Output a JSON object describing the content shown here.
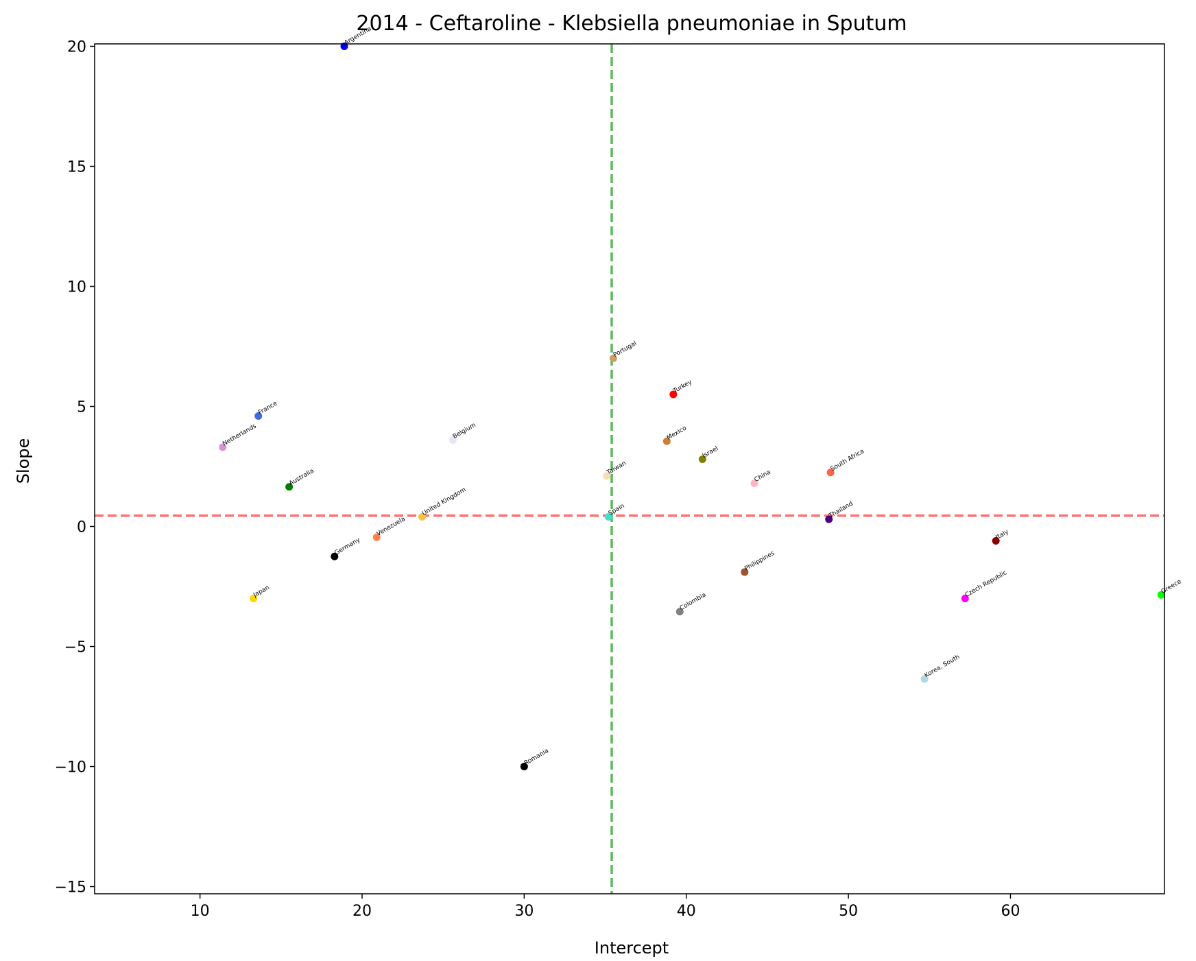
{
  "chart_data": {
    "type": "scatter",
    "title": "2014 - Ceftaroline - Klebsiella pneumoniae in Sputum",
    "xlabel": "Intercept",
    "ylabel": "Slope",
    "xlim": [
      3.5,
      69.5
    ],
    "ylim": [
      -15.3,
      20.1
    ],
    "xticks": [
      10,
      20,
      30,
      40,
      50,
      60
    ],
    "yticks": [
      -15,
      -10,
      -5,
      0,
      5,
      10,
      15,
      20
    ],
    "xtick_labels": [
      "10",
      "20",
      "30",
      "40",
      "50",
      "60"
    ],
    "ytick_labels": [
      "−15",
      "−10",
      "−5",
      "0",
      "5",
      "10",
      "15",
      "20"
    ],
    "grid": false,
    "reference_lines": [
      {
        "orientation": "vertical",
        "value": 35.4,
        "color": "#5cb85c",
        "style": "dashed"
      },
      {
        "orientation": "horizontal",
        "value": 0.45,
        "color": "#ff7070",
        "style": "dashed"
      }
    ],
    "points": [
      {
        "label": "Argentina",
        "x": 18.9,
        "y": 20.0,
        "color": "#0000ff"
      },
      {
        "label": "France",
        "x": 13.6,
        "y": 4.6,
        "color": "#4169e1"
      },
      {
        "label": "Netherlands",
        "x": 11.4,
        "y": 3.3,
        "color": "#da8fd6"
      },
      {
        "label": "Belgium",
        "x": 25.6,
        "y": 3.6,
        "color": "#e6e6fa"
      },
      {
        "label": "Australia",
        "x": 15.5,
        "y": 1.65,
        "color": "#008000"
      },
      {
        "label": "United Kingdom",
        "x": 23.7,
        "y": 0.4,
        "color": "#f4c542"
      },
      {
        "label": "Venezuela",
        "x": 20.9,
        "y": -0.45,
        "color": "#ff7f50"
      },
      {
        "label": "Germany",
        "x": 18.3,
        "y": -1.25,
        "color": "#000000"
      },
      {
        "label": "Japan",
        "x": 13.3,
        "y": -3.0,
        "color": "#ffd700"
      },
      {
        "label": "Romania",
        "x": 30.0,
        "y": -10.0,
        "color": "#000000"
      },
      {
        "label": "Portugal",
        "x": 35.5,
        "y": 7.0,
        "color": "#c8a165"
      },
      {
        "label": "Turkey",
        "x": 39.2,
        "y": 5.5,
        "color": "#ff0000"
      },
      {
        "label": "Mexico",
        "x": 38.8,
        "y": 3.55,
        "color": "#cd7f32"
      },
      {
        "label": "Israel",
        "x": 41.0,
        "y": 2.8,
        "color": "#808000"
      },
      {
        "label": "Taiwan",
        "x": 35.1,
        "y": 2.1,
        "color": "#f5deb3"
      },
      {
        "label": "Spain",
        "x": 35.2,
        "y": 0.4,
        "color": "#40e0d0"
      },
      {
        "label": "China",
        "x": 44.2,
        "y": 1.8,
        "color": "#ffb6c1"
      },
      {
        "label": "South Africa",
        "x": 48.9,
        "y": 2.25,
        "color": "#ff6347"
      },
      {
        "label": "Thailand",
        "x": 48.8,
        "y": 0.3,
        "color": "#4b0082"
      },
      {
        "label": "Philippines",
        "x": 43.6,
        "y": -1.9,
        "color": "#a0522d"
      },
      {
        "label": "Colombia",
        "x": 39.6,
        "y": -3.55,
        "color": "#808080"
      },
      {
        "label": "Italy",
        "x": 59.1,
        "y": -0.6,
        "color": "#8b0000"
      },
      {
        "label": "Czech Republic",
        "x": 57.2,
        "y": -3.0,
        "color": "#ff00ff"
      },
      {
        "label": "Korea, South",
        "x": 54.7,
        "y": -6.35,
        "color": "#add8e6"
      },
      {
        "label": "Greece",
        "x": 69.3,
        "y": -2.85,
        "color": "#00ff00"
      }
    ]
  }
}
